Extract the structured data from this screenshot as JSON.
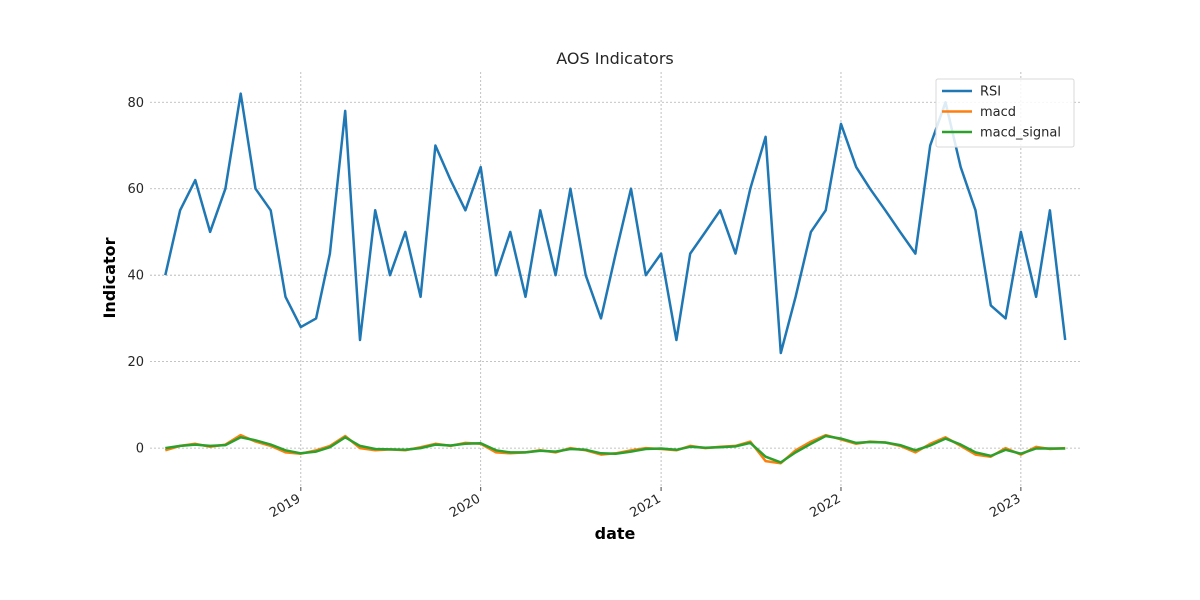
{
  "chart_data": {
    "type": "line",
    "title": "AOS Indicators",
    "xlabel": "date",
    "ylabel": "Indicator",
    "xlim": [
      "2018-03-01",
      "2023-05-01"
    ],
    "ylim": [
      -9,
      87
    ],
    "x_ticks": [
      {
        "date": "2019-01-01",
        "label": "2019"
      },
      {
        "date": "2020-01-01",
        "label": "2020"
      },
      {
        "date": "2021-01-01",
        "label": "2021"
      },
      {
        "date": "2022-01-01",
        "label": "2022"
      },
      {
        "date": "2023-01-01",
        "label": "2023"
      }
    ],
    "y_ticks": [
      0,
      20,
      40,
      60,
      80
    ],
    "grid": true,
    "legend": "top-right",
    "series": [
      {
        "name": "RSI",
        "color": "#1f77b4",
        "x": [
          "2018-04-01",
          "2018-05-01",
          "2018-06-01",
          "2018-07-01",
          "2018-08-01",
          "2018-09-01",
          "2018-10-01",
          "2018-11-01",
          "2018-12-01",
          "2019-01-01",
          "2019-02-01",
          "2019-03-01",
          "2019-04-01",
          "2019-05-01",
          "2019-06-01",
          "2019-07-01",
          "2019-08-01",
          "2019-09-01",
          "2019-10-01",
          "2019-11-01",
          "2019-12-01",
          "2020-01-01",
          "2020-02-01",
          "2020-03-01",
          "2020-04-01",
          "2020-05-01",
          "2020-06-01",
          "2020-07-01",
          "2020-08-01",
          "2020-09-01",
          "2020-10-01",
          "2020-11-01",
          "2020-12-01",
          "2021-01-01",
          "2021-02-01",
          "2021-03-01",
          "2021-04-01",
          "2021-05-01",
          "2021-06-01",
          "2021-07-01",
          "2021-08-01",
          "2021-09-01",
          "2021-10-01",
          "2021-11-01",
          "2021-12-01",
          "2022-01-01",
          "2022-02-01",
          "2022-03-01",
          "2022-04-01",
          "2022-05-01",
          "2022-06-01",
          "2022-07-01",
          "2022-08-01",
          "2022-09-01",
          "2022-10-01",
          "2022-11-01",
          "2022-12-01",
          "2023-01-01",
          "2023-02-01",
          "2023-03-01",
          "2023-04-01"
        ],
        "values": [
          40,
          55,
          62,
          50,
          60,
          82,
          60,
          55,
          35,
          28,
          30,
          45,
          78,
          25,
          55,
          40,
          50,
          35,
          70,
          62,
          55,
          65,
          40,
          50,
          35,
          55,
          40,
          60,
          40,
          30,
          45,
          60,
          40,
          45,
          25,
          45,
          50,
          55,
          45,
          60,
          72,
          22,
          35,
          50,
          55,
          75,
          65,
          60,
          55,
          50,
          45,
          70,
          80,
          65,
          55,
          33,
          30,
          50,
          35,
          55,
          25
        ]
      },
      {
        "name": "macd",
        "color": "#ff7f0e",
        "x": [
          "2018-04-01",
          "2018-05-01",
          "2018-06-01",
          "2018-07-01",
          "2018-08-01",
          "2018-09-01",
          "2018-10-01",
          "2018-11-01",
          "2018-12-01",
          "2019-01-01",
          "2019-02-01",
          "2019-03-01",
          "2019-04-01",
          "2019-05-01",
          "2019-06-01",
          "2019-07-01",
          "2019-08-01",
          "2019-09-01",
          "2019-10-01",
          "2019-11-01",
          "2019-12-01",
          "2020-01-01",
          "2020-02-01",
          "2020-03-01",
          "2020-04-01",
          "2020-05-01",
          "2020-06-01",
          "2020-07-01",
          "2020-08-01",
          "2020-09-01",
          "2020-10-01",
          "2020-11-01",
          "2020-12-01",
          "2021-01-01",
          "2021-02-01",
          "2021-03-01",
          "2021-04-01",
          "2021-05-01",
          "2021-06-01",
          "2021-07-01",
          "2021-08-01",
          "2021-09-01",
          "2021-10-01",
          "2021-11-01",
          "2021-12-01",
          "2022-01-01",
          "2022-02-01",
          "2022-03-01",
          "2022-04-01",
          "2022-05-01",
          "2022-06-01",
          "2022-07-01",
          "2022-08-01",
          "2022-09-01",
          "2022-10-01",
          "2022-11-01",
          "2022-12-01",
          "2023-01-01",
          "2023-02-01",
          "2023-03-01",
          "2023-04-01"
        ],
        "values": [
          -0.5,
          0.5,
          1.0,
          0.3,
          0.8,
          3.0,
          1.5,
          0.5,
          -1.0,
          -1.3,
          -0.5,
          0.5,
          2.8,
          0.0,
          -0.5,
          -0.3,
          -0.5,
          0.2,
          1.0,
          0.5,
          1.2,
          1.0,
          -1.0,
          -1.2,
          -1.0,
          -0.5,
          -1.0,
          0.0,
          -0.5,
          -1.5,
          -1.2,
          -0.5,
          0.0,
          -0.2,
          -0.5,
          0.5,
          0.0,
          0.3,
          0.5,
          1.5,
          -3.0,
          -3.5,
          -0.5,
          1.5,
          3.0,
          2.0,
          1.0,
          1.5,
          1.3,
          0.5,
          -1.0,
          1.0,
          2.5,
          0.5,
          -1.5,
          -2.0,
          0.0,
          -1.5,
          0.3,
          -0.2,
          0.0
        ]
      },
      {
        "name": "macd_signal",
        "color": "#2ca02c",
        "x": [
          "2018-04-01",
          "2018-05-01",
          "2018-06-01",
          "2018-07-01",
          "2018-08-01",
          "2018-09-01",
          "2018-10-01",
          "2018-11-01",
          "2018-12-01",
          "2019-01-01",
          "2019-02-01",
          "2019-03-01",
          "2019-04-01",
          "2019-05-01",
          "2019-06-01",
          "2019-07-01",
          "2019-08-01",
          "2019-09-01",
          "2019-10-01",
          "2019-11-01",
          "2019-12-01",
          "2020-01-01",
          "2020-02-01",
          "2020-03-01",
          "2020-04-01",
          "2020-05-01",
          "2020-06-01",
          "2020-07-01",
          "2020-08-01",
          "2020-09-01",
          "2020-10-01",
          "2020-11-01",
          "2020-12-01",
          "2021-01-01",
          "2021-02-01",
          "2021-03-01",
          "2021-04-01",
          "2021-05-01",
          "2021-06-01",
          "2021-07-01",
          "2021-08-01",
          "2021-09-01",
          "2021-10-01",
          "2021-11-01",
          "2021-12-01",
          "2022-01-01",
          "2022-02-01",
          "2022-03-01",
          "2022-04-01",
          "2022-05-01",
          "2022-06-01",
          "2022-07-01",
          "2022-08-01",
          "2022-09-01",
          "2022-10-01",
          "2022-11-01",
          "2022-12-01",
          "2023-01-01",
          "2023-02-01",
          "2023-03-01",
          "2023-04-01"
        ],
        "values": [
          0.0,
          0.5,
          0.8,
          0.5,
          0.7,
          2.5,
          1.8,
          0.8,
          -0.5,
          -1.2,
          -0.8,
          0.2,
          2.5,
          0.5,
          -0.2,
          -0.3,
          -0.4,
          0.0,
          0.8,
          0.6,
          1.0,
          1.1,
          -0.5,
          -1.0,
          -1.0,
          -0.6,
          -0.8,
          -0.2,
          -0.4,
          -1.2,
          -1.3,
          -0.8,
          -0.2,
          -0.1,
          -0.4,
          0.3,
          0.1,
          0.2,
          0.4,
          1.2,
          -2.0,
          -3.3,
          -1.0,
          1.0,
          2.8,
          2.2,
          1.2,
          1.4,
          1.3,
          0.7,
          -0.5,
          0.6,
          2.2,
          0.8,
          -1.0,
          -1.8,
          -0.4,
          -1.3,
          -0.1,
          -0.1,
          -0.1
        ]
      }
    ]
  }
}
